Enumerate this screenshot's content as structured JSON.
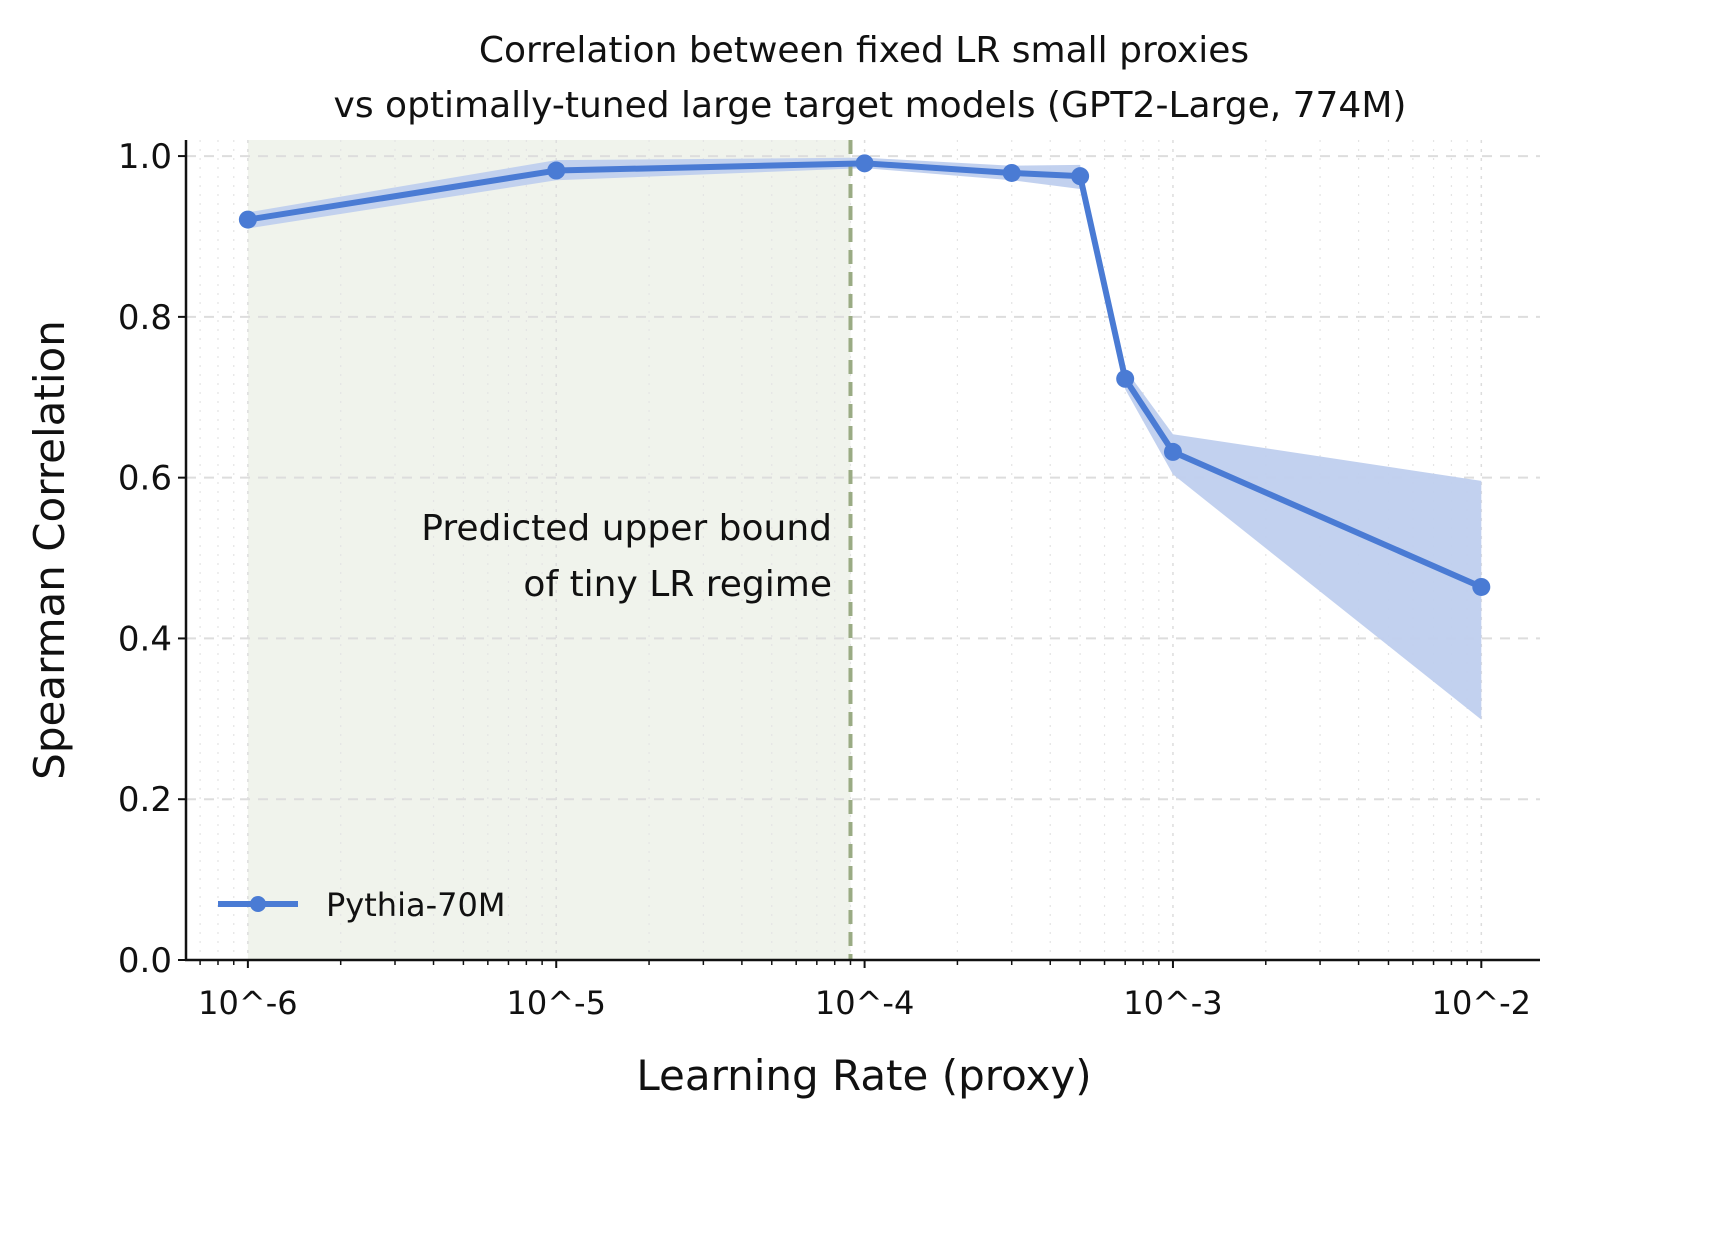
{
  "chart_data": {
    "type": "line",
    "title_lines": [
      "Correlation between fixed LR small proxies",
      "vs optimally-tuned large target models (GPT2-Large, 774M)"
    ],
    "xlabel": "Learning Rate (proxy)",
    "ylabel": "Spearman Correlation",
    "xscale": "log",
    "xlim": [
      6.3e-07,
      0.0155
    ],
    "ylim": [
      0.0,
      1.02
    ],
    "xticks": [
      {
        "value": 1e-06,
        "label": "10^-6"
      },
      {
        "value": 1e-05,
        "label": "10^-5"
      },
      {
        "value": 0.0001,
        "label": "10^-4"
      },
      {
        "value": 0.001,
        "label": "10^-3"
      },
      {
        "value": 0.01,
        "label": "10^-2"
      }
    ],
    "yticks": [
      0.0,
      0.2,
      0.4,
      0.6,
      0.8,
      1.0
    ],
    "ytick_labels": [
      "0.0",
      "0.2",
      "0.4",
      "0.6",
      "0.8",
      "1.0"
    ],
    "grid": true,
    "legend_placement": "lower-left",
    "series": [
      {
        "name": "Pythia-70M",
        "color": "#4a7bd4",
        "band_color": "#bfcfee",
        "x": [
          1e-06,
          1e-05,
          0.0001,
          0.0003,
          0.0005,
          0.0007,
          0.001,
          0.01
        ],
        "y": [
          0.921,
          0.982,
          0.991,
          0.979,
          0.975,
          0.723,
          0.632,
          0.464
        ],
        "y_lower": [
          0.91,
          0.97,
          0.985,
          0.97,
          0.959,
          0.71,
          0.604,
          0.299
        ],
        "y_upper": [
          0.93,
          0.995,
          0.998,
          0.988,
          0.989,
          0.735,
          0.654,
          0.596
        ]
      }
    ],
    "shaded_region": {
      "x_start": 1e-06,
      "x_end": 9e-05,
      "color": "#f0f3ec"
    },
    "vline": {
      "x": 9e-05,
      "color": "#9aab84",
      "style": "dashed"
    },
    "annotation": {
      "lines": [
        "Predicted upper bound",
        "of tiny LR regime"
      ]
    }
  }
}
